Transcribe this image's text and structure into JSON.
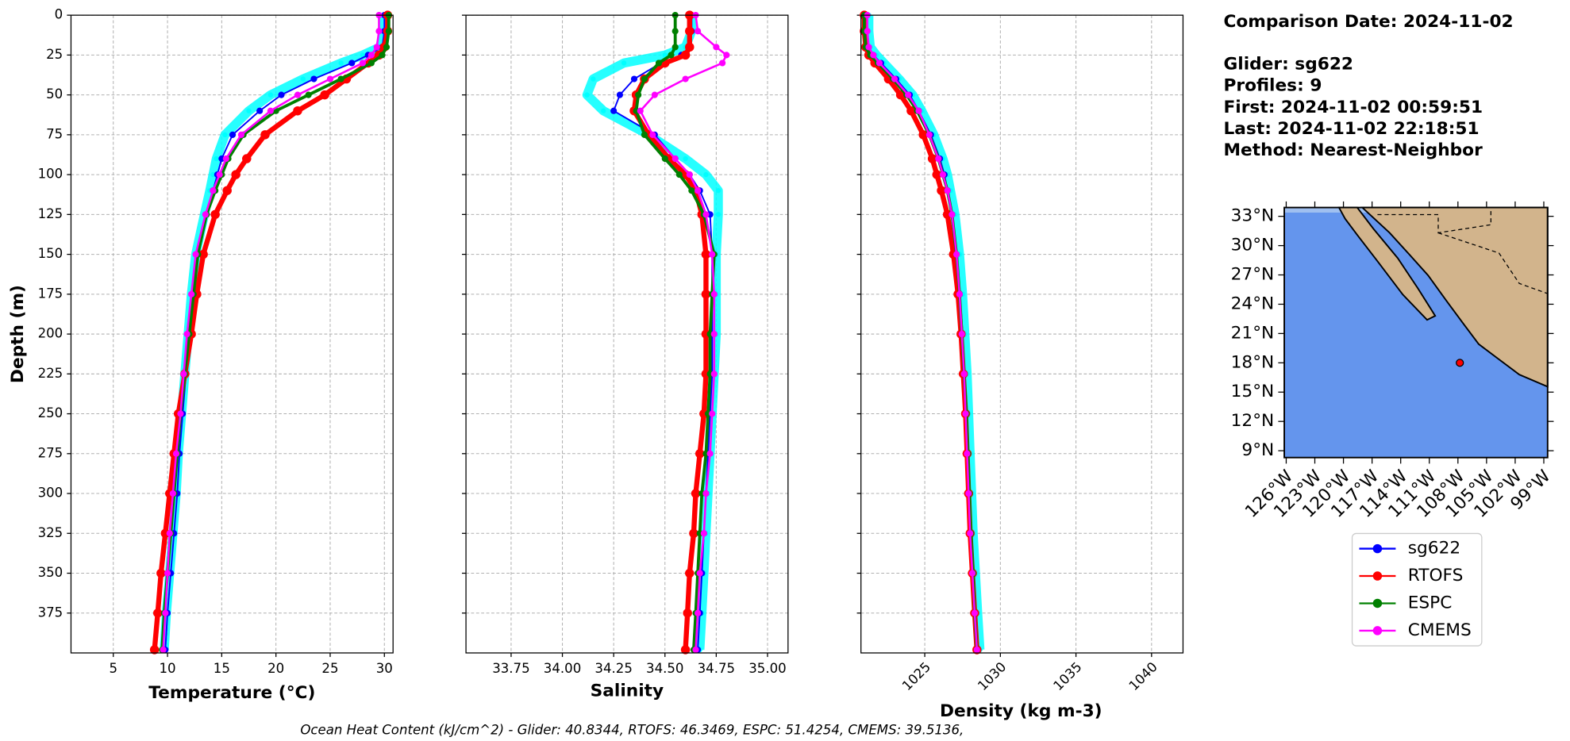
{
  "chart_data": [
    {
      "type": "line",
      "xlabel": "Temperature (°C)",
      "ylabel": "Depth (m)",
      "xlim": [
        1.1,
        30.8
      ],
      "xticks": [
        5,
        10,
        15,
        20,
        25,
        30
      ],
      "ylim": [
        0,
        400
      ],
      "yticks": [
        0,
        25,
        50,
        75,
        100,
        125,
        150,
        175,
        200,
        225,
        250,
        275,
        300,
        325,
        350,
        375
      ],
      "y_inverted": true,
      "grid": true,
      "y": [
        0,
        10,
        20,
        25,
        30,
        40,
        50,
        60,
        75,
        90,
        100,
        110,
        125,
        150,
        175,
        200,
        225,
        250,
        275,
        300,
        325,
        350,
        375,
        398
      ],
      "series": [
        {
          "color": "#00ffff",
          "linewidth": 9,
          "values": [
            29.9,
            29.9,
            29.6,
            28,
            26,
            22.5,
            19.5,
            17.5,
            15.3,
            14.5,
            14.2,
            13.9,
            13.4,
            12.6,
            12.2,
            11.9,
            11.6,
            11.3,
            11.0,
            10.8,
            10.5,
            10.2,
            9.9,
            9.7
          ]
        },
        {
          "name": "sg622",
          "color": "#0000ff",
          "linewidth": 1.5,
          "values": [
            30.0,
            30.0,
            29.8,
            28.5,
            27,
            23.5,
            20.5,
            18.5,
            16,
            15,
            14.6,
            14.2,
            13.6,
            12.7,
            12.3,
            12.0,
            11.7,
            11.4,
            11.1,
            10.9,
            10.6,
            10.3,
            10.0,
            9.8
          ]
        },
        {
          "name": "RTOFS",
          "color": "#ff0000",
          "linewidth": 5,
          "values": [
            30.3,
            30.3,
            30.0,
            29.5,
            28.5,
            26.5,
            24.5,
            22,
            19,
            17.3,
            16.3,
            15.5,
            14.4,
            13.3,
            12.7,
            12.2,
            11.6,
            11.0,
            10.6,
            10.2,
            9.8,
            9.4,
            9.1,
            8.8
          ]
        },
        {
          "name": "ESPC",
          "color": "#008000",
          "linewidth": 3,
          "values": [
            30.4,
            30.4,
            30.2,
            29.8,
            28.8,
            26,
            23,
            20,
            17,
            15.6,
            15,
            14.4,
            13.6,
            12.8,
            12.4,
            12.0,
            11.6,
            11.2,
            10.9,
            10.6,
            10.3,
            10.0,
            9.7,
            9.5
          ]
        },
        {
          "name": "CMEMS",
          "color": "#ff00ff",
          "linewidth": 2,
          "values": [
            29.5,
            29.5,
            29.3,
            28.8,
            28,
            25,
            22,
            19.5,
            16.8,
            15.4,
            14.8,
            14.2,
            13.5,
            12.6,
            12.2,
            11.8,
            11.5,
            11.2,
            10.8,
            10.5,
            10.2,
            10.0,
            9.8,
            9.6
          ]
        }
      ]
    },
    {
      "type": "line",
      "xlabel": "Salinity",
      "xlim": [
        33.53,
        35.1
      ],
      "xticks": [
        33.75,
        {
          "value": 34,
          "label": "34.00"
        },
        34.25,
        {
          "value": 34.5,
          "label": "34.50"
        },
        34.75,
        {
          "value": 35,
          "label": "35.00"
        }
      ],
      "ylim": [
        0,
        400
      ],
      "yticks": [
        0,
        25,
        50,
        75,
        100,
        125,
        150,
        175,
        200,
        225,
        250,
        275,
        300,
        325,
        350,
        375
      ],
      "y_inverted": true,
      "grid": true,
      "y": [
        0,
        10,
        20,
        25,
        30,
        40,
        50,
        60,
        75,
        90,
        100,
        110,
        125,
        150,
        175,
        200,
        225,
        250,
        275,
        300,
        325,
        350,
        375,
        398
      ],
      "series": [
        {
          "color": "#00ffff",
          "linewidth": 9,
          "values": [
            34.63,
            34.63,
            34.6,
            34.5,
            34.3,
            34.15,
            34.12,
            34.2,
            34.42,
            34.6,
            34.7,
            34.76,
            34.76,
            34.75,
            34.75,
            34.75,
            34.74,
            34.73,
            34.72,
            34.71,
            34.7,
            34.69,
            34.68,
            34.67
          ]
        },
        {
          "name": "sg622",
          "color": "#0000ff",
          "linewidth": 1.5,
          "values": [
            34.63,
            34.63,
            34.62,
            34.58,
            34.48,
            34.35,
            34.28,
            34.25,
            34.45,
            34.55,
            34.62,
            34.67,
            34.72,
            34.73,
            34.73,
            34.73,
            34.73,
            34.72,
            34.71,
            34.7,
            34.69,
            34.68,
            34.67,
            34.66
          ]
        },
        {
          "name": "RTOFS",
          "color": "#ff0000",
          "linewidth": 5,
          "values": [
            34.62,
            34.62,
            34.62,
            34.6,
            34.5,
            34.4,
            34.36,
            34.35,
            34.42,
            34.52,
            34.6,
            34.65,
            34.68,
            34.7,
            34.7,
            34.7,
            34.7,
            34.69,
            34.67,
            34.65,
            34.64,
            34.62,
            34.61,
            34.6
          ]
        },
        {
          "name": "ESPC",
          "color": "#008000",
          "linewidth": 3,
          "values": [
            34.55,
            34.55,
            34.55,
            34.53,
            34.47,
            34.4,
            34.37,
            34.36,
            34.4,
            34.5,
            34.57,
            34.63,
            34.69,
            34.74,
            34.73,
            34.72,
            34.72,
            34.71,
            34.7,
            34.68,
            34.67,
            34.66,
            34.65,
            34.64
          ]
        },
        {
          "name": "CMEMS",
          "color": "#ff00ff",
          "linewidth": 2,
          "values": [
            34.65,
            34.66,
            34.75,
            34.8,
            34.78,
            34.6,
            34.45,
            34.38,
            34.44,
            34.55,
            34.62,
            34.66,
            34.7,
            34.73,
            34.74,
            34.74,
            34.74,
            34.73,
            34.72,
            34.7,
            34.69,
            34.67,
            34.66,
            34.65
          ]
        }
      ]
    },
    {
      "type": "line",
      "xlabel": "Density (kg m-3)",
      "xlim": [
        1020.78,
        1042.08
      ],
      "xticks": [
        1025,
        1030,
        1035,
        1040
      ],
      "xtick_rotation": 45,
      "ylim": [
        0,
        400
      ],
      "yticks": [
        0,
        25,
        50,
        75,
        100,
        125,
        150,
        175,
        200,
        225,
        250,
        275,
        300,
        325,
        350,
        375
      ],
      "y_inverted": true,
      "grid": true,
      "y": [
        0,
        10,
        20,
        25,
        30,
        40,
        50,
        60,
        75,
        90,
        100,
        110,
        125,
        150,
        175,
        200,
        225,
        250,
        275,
        300,
        325,
        350,
        375,
        398
      ],
      "series": [
        {
          "color": "#00ffff",
          "linewidth": 9,
          "values": [
            1021.3,
            1021.3,
            1021.4,
            1021.8,
            1022.3,
            1023.3,
            1024.2,
            1024.8,
            1025.6,
            1026.2,
            1026.5,
            1026.7,
            1027.0,
            1027.3,
            1027.5,
            1027.65,
            1027.8,
            1027.9,
            1028.0,
            1028.1,
            1028.2,
            1028.35,
            1028.5,
            1028.65
          ]
        },
        {
          "name": "sg622",
          "color": "#0000ff",
          "linewidth": 1.5,
          "values": [
            1021.1,
            1021.1,
            1021.2,
            1021.6,
            1022.1,
            1023.1,
            1024.0,
            1024.6,
            1025.4,
            1026.0,
            1026.3,
            1026.5,
            1026.8,
            1027.1,
            1027.3,
            1027.45,
            1027.6,
            1027.7,
            1027.8,
            1027.9,
            1028.0,
            1028.15,
            1028.3,
            1028.45
          ]
        },
        {
          "name": "RTOFS",
          "color": "#ff0000",
          "linewidth": 5,
          "values": [
            1021.0,
            1021.0,
            1021.1,
            1021.3,
            1021.7,
            1022.6,
            1023.4,
            1024.1,
            1024.9,
            1025.5,
            1025.8,
            1026.1,
            1026.5,
            1026.9,
            1027.2,
            1027.4,
            1027.55,
            1027.7,
            1027.8,
            1027.9,
            1028.0,
            1028.15,
            1028.3,
            1028.45
          ]
        },
        {
          "name": "ESPC",
          "color": "#008000",
          "linewidth": 3,
          "values": [
            1021.0,
            1021.0,
            1021.1,
            1021.4,
            1021.9,
            1022.9,
            1023.8,
            1024.5,
            1025.3,
            1025.9,
            1026.2,
            1026.5,
            1026.8,
            1027.1,
            1027.3,
            1027.45,
            1027.6,
            1027.75,
            1027.85,
            1027.95,
            1028.05,
            1028.2,
            1028.3,
            1028.45
          ]
        },
        {
          "name": "CMEMS",
          "color": "#ff00ff",
          "linewidth": 2,
          "values": [
            1021.2,
            1021.2,
            1021.3,
            1021.6,
            1022.0,
            1023.0,
            1023.9,
            1024.6,
            1025.3,
            1025.9,
            1026.2,
            1026.5,
            1026.8,
            1027.1,
            1027.3,
            1027.45,
            1027.6,
            1027.7,
            1027.8,
            1027.9,
            1028.0,
            1028.15,
            1028.3,
            1028.45
          ]
        }
      ]
    },
    {
      "type": "map",
      "lonlim": [
        -126.2,
        -98.6
      ],
      "latlim": [
        8.3,
        33.9
      ],
      "latticks": [
        {
          "value": 33,
          "label": "33°N"
        },
        {
          "value": 30,
          "label": "30°N"
        },
        {
          "value": 27,
          "label": "27°N"
        },
        {
          "value": 24,
          "label": "24°N"
        },
        {
          "value": 21,
          "label": "21°N"
        },
        {
          "value": 18,
          "label": "18°N"
        },
        {
          "value": 15,
          "label": "15°N"
        },
        {
          "value": 12,
          "label": "12°N"
        },
        {
          "value": 9,
          "label": "9°N"
        }
      ],
      "lonticks": [
        {
          "value": -126,
          "label": "126°W"
        },
        {
          "value": -123,
          "label": "123°W"
        },
        {
          "value": -120,
          "label": "120°W"
        },
        {
          "value": -117,
          "label": "117°W"
        },
        {
          "value": -114,
          "label": "114°W"
        },
        {
          "value": -111,
          "label": "111°W"
        },
        {
          "value": -108,
          "label": "108°W"
        },
        {
          "value": -105,
          "label": "105°W"
        },
        {
          "value": -102,
          "label": "102°W"
        },
        {
          "value": -99,
          "label": "99°W"
        }
      ],
      "point": {
        "lon": -107.8,
        "lat": 18.0,
        "color": "#ff0000"
      }
    }
  ],
  "info": [
    "Comparison Date: 2024-11-02",
    "Glider: sg622",
    "Profiles: 9",
    "First: 2024-11-02 00:59:51",
    "Last: 2024-11-02 22:18:51",
    "Method: Nearest-Neighbor"
  ],
  "caption": "Ocean Heat Content (kJ/cm^2) - Glider: 40.8344,  RTOFS: 46.3469,  ESPC: 51.4254,  CMEMS: 39.5136,"
}
